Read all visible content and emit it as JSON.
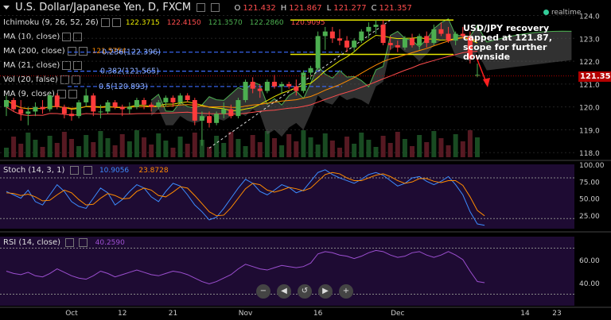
{
  "header": {
    "title": "U.S. Dollar/Japanese Yen, D, FXCM",
    "ohlc": [
      {
        "k": "O",
        "v": "121.432"
      },
      {
        "k": "H",
        "v": "121.867"
      },
      {
        "k": "L",
        "v": "121.277"
      },
      {
        "k": "C",
        "v": "121.357"
      }
    ],
    "realtime": "realtime"
  },
  "indicators": [
    {
      "label": "Ichimoku (9, 26, 52, 26)",
      "values": [
        {
          "v": "122.3715",
          "color": "#e6e600"
        },
        {
          "v": "122.4150",
          "color": "#ff4d4d"
        },
        {
          "v": "121.3570",
          "color": "#4caf50"
        },
        {
          "v": "122.2860",
          "color": "#4caf50"
        },
        {
          "v": "120.9095",
          "color": "#ff4d4d"
        }
      ]
    },
    {
      "label": "MA (10, close)",
      "values": []
    },
    {
      "label": "MA (200, close)",
      "values": [
        {
          "v": "121.5754",
          "color": "#ff8c00"
        }
      ]
    },
    {
      "label": "MA (21, close)",
      "values": []
    },
    {
      "label": "Vol (20, false)",
      "values": []
    },
    {
      "label": "MA (9, close)",
      "values": []
    }
  ],
  "annotation": "USD/JPY recovery capped at 121.87, scope for further downside",
  "current_price": "121.357",
  "chart_data": [
    {
      "type": "candlestick",
      "title": "U.S. Dollar/Japanese Yen, D, FXCM",
      "ylim": [
        117.8,
        124.4
      ],
      "y_ticks": [
        118.0,
        119.0,
        120.0,
        121.0,
        122.0,
        123.0,
        124.0
      ],
      "x_tick_labels": [
        "Oct",
        "12",
        "21",
        "Nov",
        "16",
        "Dec",
        "14",
        "23"
      ],
      "candles": [
        [
          120.0,
          120.5,
          119.6,
          120.3
        ],
        [
          120.3,
          120.4,
          119.8,
          119.9
        ],
        [
          119.9,
          120.3,
          119.4,
          119.7
        ],
        [
          119.7,
          120.0,
          119.2,
          119.8
        ],
        [
          119.8,
          120.2,
          119.6,
          120.0
        ],
        [
          120.0,
          120.3,
          119.7,
          119.9
        ],
        [
          119.9,
          120.6,
          119.8,
          120.5
        ],
        [
          120.5,
          120.6,
          119.9,
          120.0
        ],
        [
          120.0,
          120.1,
          119.5,
          119.7
        ],
        [
          119.7,
          119.9,
          119.4,
          119.6
        ],
        [
          119.6,
          120.3,
          119.5,
          120.2
        ],
        [
          120.2,
          120.8,
          120.0,
          120.5
        ],
        [
          120.5,
          120.6,
          119.6,
          119.8
        ],
        [
          119.8,
          120.1,
          119.5,
          119.8
        ],
        [
          119.8,
          120.3,
          119.7,
          120.2
        ],
        [
          120.2,
          120.3,
          119.9,
          120.0
        ],
        [
          120.0,
          120.1,
          119.6,
          119.9
        ],
        [
          119.9,
          120.2,
          119.7,
          120.0
        ],
        [
          120.0,
          120.4,
          119.9,
          120.3
        ],
        [
          120.3,
          120.4,
          119.9,
          120.1
        ],
        [
          120.1,
          120.2,
          119.8,
          120.0
        ],
        [
          120.0,
          120.3,
          119.9,
          120.2
        ],
        [
          120.2,
          120.5,
          120.0,
          120.4
        ],
        [
          120.4,
          120.5,
          120.0,
          120.2
        ],
        [
          120.2,
          120.6,
          120.1,
          120.5
        ],
        [
          120.5,
          120.6,
          120.2,
          120.3
        ],
        [
          120.3,
          120.4,
          119.2,
          119.4
        ],
        [
          119.4,
          119.8,
          118.3,
          119.6
        ],
        [
          119.6,
          119.8,
          119.1,
          119.3
        ],
        [
          119.3,
          119.8,
          119.2,
          119.7
        ],
        [
          119.7,
          120.2,
          119.5,
          119.9
        ],
        [
          119.9,
          120.1,
          119.5,
          119.6
        ],
        [
          119.6,
          120.4,
          119.5,
          120.3
        ],
        [
          120.3,
          121.2,
          120.2,
          121.1
        ],
        [
          121.1,
          121.3,
          120.6,
          120.8
        ],
        [
          120.8,
          121.0,
          120.4,
          120.7
        ],
        [
          120.7,
          121.2,
          120.6,
          121.1
        ],
        [
          121.1,
          121.4,
          120.8,
          120.9
        ],
        [
          120.9,
          121.1,
          120.6,
          121.0
        ],
        [
          121.0,
          121.1,
          120.8,
          120.9
        ],
        [
          120.9,
          121.2,
          120.5,
          120.7
        ],
        [
          120.7,
          121.6,
          120.6,
          121.5
        ],
        [
          121.5,
          121.8,
          121.2,
          121.7
        ],
        [
          121.7,
          123.3,
          121.6,
          123.1
        ],
        [
          123.1,
          123.5,
          122.5,
          123.3
        ],
        [
          123.3,
          123.5,
          122.8,
          123.0
        ],
        [
          123.0,
          123.4,
          122.7,
          122.9
        ],
        [
          122.9,
          123.1,
          122.4,
          122.6
        ],
        [
          122.6,
          123.0,
          122.4,
          122.9
        ],
        [
          122.9,
          123.4,
          122.8,
          123.3
        ],
        [
          123.3,
          123.7,
          123.0,
          123.5
        ],
        [
          123.5,
          123.8,
          123.2,
          123.6
        ],
        [
          123.6,
          123.8,
          122.7,
          122.8
        ],
        [
          122.8,
          123.1,
          122.5,
          122.7
        ],
        [
          122.7,
          122.9,
          122.4,
          122.6
        ],
        [
          122.6,
          123.1,
          122.5,
          123.0
        ],
        [
          123.0,
          123.2,
          122.6,
          122.7
        ],
        [
          122.7,
          123.2,
          122.5,
          123.1
        ],
        [
          123.1,
          123.3,
          122.6,
          122.8
        ],
        [
          122.8,
          123.6,
          122.7,
          123.4
        ],
        [
          123.4,
          123.7,
          123.1,
          123.2
        ],
        [
          123.2,
          123.5,
          122.8,
          122.9
        ],
        [
          122.9,
          123.3,
          122.7,
          123.2
        ],
        [
          123.2,
          123.5,
          123.0,
          123.1
        ],
        [
          123.1,
          123.3,
          121.9,
          122.1
        ],
        [
          121.4,
          121.9,
          121.3,
          121.4
        ]
      ],
      "fib_levels": [
        {
          "label": "0.236(122.396)",
          "value": 122.396
        },
        {
          "label": "0.382(121.565)",
          "value": 121.565
        },
        {
          "label": "0.5(120.893)",
          "value": 120.893
        }
      ],
      "resistance_levels": [
        123.8,
        122.3
      ]
    },
    {
      "type": "line",
      "title": "Stoch (14, 3, 1)",
      "ylim": [
        5,
        100
      ],
      "y_ticks": [
        25.0,
        50.0,
        75.0,
        100.0
      ],
      "last_values": [
        "10.9056",
        "23.8728"
      ],
      "series": [
        {
          "values": [
            60,
            55,
            50,
            62,
            45,
            40,
            55,
            70,
            60,
            45,
            38,
            35,
            50,
            65,
            58,
            40,
            48,
            60,
            70,
            65,
            52,
            45,
            60,
            72,
            68,
            55,
            40,
            30,
            18,
            22,
            35,
            50,
            65,
            78,
            72,
            60,
            55,
            62,
            70,
            66,
            58,
            62,
            75,
            88,
            92,
            85,
            80,
            76,
            72,
            78,
            85,
            88,
            84,
            76,
            68,
            72,
            80,
            82,
            75,
            70,
            75,
            82,
            70,
            55,
            30,
            12,
            10
          ]
        },
        {
          "values": [
            58,
            57,
            54,
            56,
            52,
            46,
            47,
            55,
            62,
            58,
            48,
            40,
            41,
            50,
            57,
            54,
            49,
            50,
            60,
            65,
            62,
            54,
            52,
            59,
            67,
            65,
            54,
            42,
            30,
            24,
            25,
            36,
            50,
            64,
            72,
            70,
            62,
            59,
            62,
            66,
            64,
            61,
            65,
            75,
            85,
            88,
            86,
            80,
            76,
            76,
            80,
            84,
            86,
            82,
            76,
            72,
            74,
            79,
            79,
            75,
            73,
            76,
            76,
            69,
            52,
            32,
            24
          ]
        }
      ]
    },
    {
      "type": "line",
      "title": "RSI (14, close)",
      "ylim": [
        20,
        80
      ],
      "y_ticks": [
        40.0,
        60.0
      ],
      "last_values": [
        "40.2590"
      ],
      "series": [
        {
          "values": [
            50,
            48,
            47,
            49,
            46,
            45,
            48,
            52,
            49,
            46,
            44,
            43,
            46,
            50,
            48,
            45,
            47,
            49,
            51,
            49,
            47,
            46,
            48,
            50,
            49,
            47,
            44,
            41,
            39,
            41,
            44,
            47,
            52,
            56,
            54,
            52,
            51,
            53,
            55,
            54,
            53,
            54,
            57,
            65,
            67,
            66,
            64,
            63,
            61,
            63,
            66,
            68,
            67,
            64,
            62,
            63,
            66,
            67,
            64,
            62,
            64,
            67,
            64,
            60,
            50,
            41,
            40
          ]
        }
      ]
    }
  ]
}
